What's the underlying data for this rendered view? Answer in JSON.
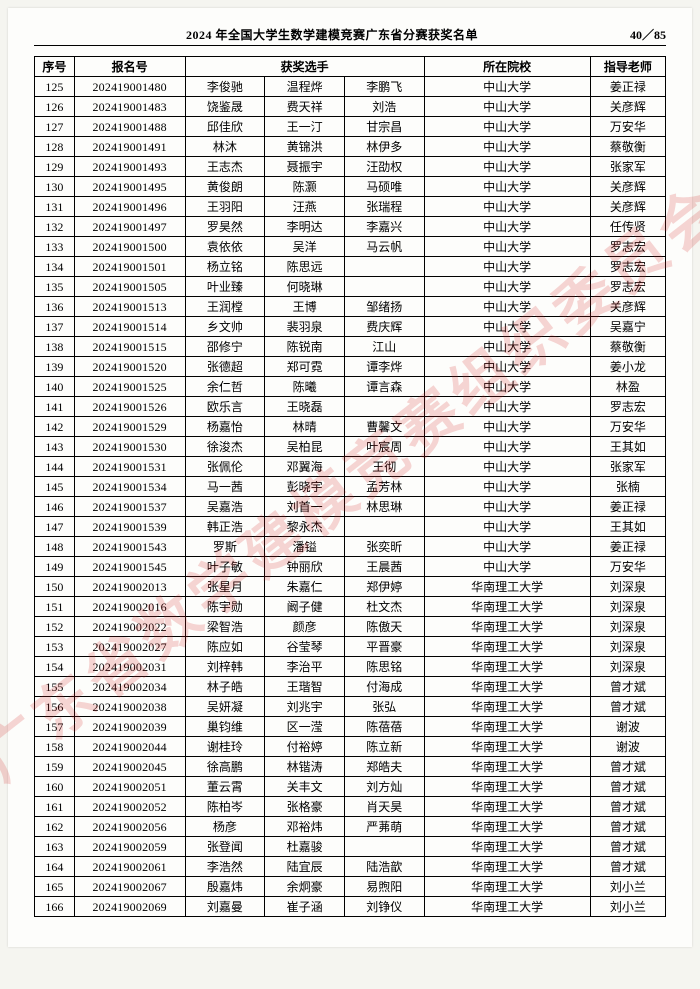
{
  "header": {
    "title": "2024 年全国大学生数学建模竞赛广东省分赛获奖名单",
    "page_label": "40／85"
  },
  "watermark": "广东省数学建模竞赛组织委员会",
  "columns": {
    "idx": "序号",
    "reg": "报名号",
    "members": "获奖选手",
    "school": "所在院校",
    "teacher": "指导老师"
  },
  "rows": [
    {
      "idx": "125",
      "reg": "202419001480",
      "m": [
        "李俊驰",
        "温程烨",
        "李鹏飞"
      ],
      "school": "中山大学",
      "teacher": "姜正禄"
    },
    {
      "idx": "126",
      "reg": "202419001483",
      "m": [
        "饶鉴晟",
        "费天祥",
        "刘浩"
      ],
      "school": "中山大学",
      "teacher": "关彦辉"
    },
    {
      "idx": "127",
      "reg": "202419001488",
      "m": [
        "邱佳欣",
        "王一汀",
        "甘宗昌"
      ],
      "school": "中山大学",
      "teacher": "万安华"
    },
    {
      "idx": "128",
      "reg": "202419001491",
      "m": [
        "林沐",
        "黄锦洪",
        "林伊多"
      ],
      "school": "中山大学",
      "teacher": "蔡敬衡"
    },
    {
      "idx": "129",
      "reg": "202419001493",
      "m": [
        "王志杰",
        "聂振宇",
        "汪劭权"
      ],
      "school": "中山大学",
      "teacher": "张家军"
    },
    {
      "idx": "130",
      "reg": "202419001495",
      "m": [
        "黄俊朗",
        "陈灏",
        "马硕唯"
      ],
      "school": "中山大学",
      "teacher": "关彦辉"
    },
    {
      "idx": "131",
      "reg": "202419001496",
      "m": [
        "王羽阳",
        "汪燕",
        "张瑞程"
      ],
      "school": "中山大学",
      "teacher": "关彦辉"
    },
    {
      "idx": "132",
      "reg": "202419001497",
      "m": [
        "罗昊然",
        "李明达",
        "李嘉兴"
      ],
      "school": "中山大学",
      "teacher": "任传贤"
    },
    {
      "idx": "133",
      "reg": "202419001500",
      "m": [
        "袁依依",
        "吴洋",
        "马云帆"
      ],
      "school": "中山大学",
      "teacher": "罗志宏"
    },
    {
      "idx": "134",
      "reg": "202419001501",
      "m": [
        "杨立铭",
        "陈思远",
        ""
      ],
      "school": "中山大学",
      "teacher": "罗志宏"
    },
    {
      "idx": "135",
      "reg": "202419001505",
      "m": [
        "叶业臻",
        "何晓琳",
        ""
      ],
      "school": "中山大学",
      "teacher": "罗志宏"
    },
    {
      "idx": "136",
      "reg": "202419001513",
      "m": [
        "王润樘",
        "王博",
        "邹绪扬"
      ],
      "school": "中山大学",
      "teacher": "关彦辉"
    },
    {
      "idx": "137",
      "reg": "202419001514",
      "m": [
        "乡文帅",
        "裴羽泉",
        "费庆辉"
      ],
      "school": "中山大学",
      "teacher": "吴嘉宁"
    },
    {
      "idx": "138",
      "reg": "202419001515",
      "m": [
        "邵修宁",
        "陈锐南",
        "江山"
      ],
      "school": "中山大学",
      "teacher": "蔡敬衡"
    },
    {
      "idx": "139",
      "reg": "202419001520",
      "m": [
        "张德超",
        "郑可霓",
        "谭李烨"
      ],
      "school": "中山大学",
      "teacher": "姜小龙"
    },
    {
      "idx": "140",
      "reg": "202419001525",
      "m": [
        "余仁哲",
        "陈曦",
        "谭言森"
      ],
      "school": "中山大学",
      "teacher": "林盈"
    },
    {
      "idx": "141",
      "reg": "202419001526",
      "m": [
        "欧乐言",
        "王晓磊",
        ""
      ],
      "school": "中山大学",
      "teacher": "罗志宏"
    },
    {
      "idx": "142",
      "reg": "202419001529",
      "m": [
        "杨嘉怡",
        "林晴",
        "曹馨文"
      ],
      "school": "中山大学",
      "teacher": "万安华"
    },
    {
      "idx": "143",
      "reg": "202419001530",
      "m": [
        "徐浚杰",
        "吴柏昆",
        "叶宸周"
      ],
      "school": "中山大学",
      "teacher": "王其如"
    },
    {
      "idx": "144",
      "reg": "202419001531",
      "m": [
        "张佩伦",
        "邓翼海",
        "王彻"
      ],
      "school": "中山大学",
      "teacher": "张家军"
    },
    {
      "idx": "145",
      "reg": "202419001534",
      "m": [
        "马一茜",
        "彭晓宇",
        "孟芳林"
      ],
      "school": "中山大学",
      "teacher": "张楠"
    },
    {
      "idx": "146",
      "reg": "202419001537",
      "m": [
        "吴嘉浩",
        "刘首一",
        "林思琳"
      ],
      "school": "中山大学",
      "teacher": "姜正禄"
    },
    {
      "idx": "147",
      "reg": "202419001539",
      "m": [
        "韩正浩",
        "黎永杰",
        ""
      ],
      "school": "中山大学",
      "teacher": "王其如"
    },
    {
      "idx": "148",
      "reg": "202419001543",
      "m": [
        "罗斯",
        "潘镒",
        "张奕昕"
      ],
      "school": "中山大学",
      "teacher": "姜正禄"
    },
    {
      "idx": "149",
      "reg": "202419001545",
      "m": [
        "叶子敏",
        "钟丽欣",
        "王晨茜"
      ],
      "school": "中山大学",
      "teacher": "万安华"
    },
    {
      "idx": "150",
      "reg": "202419002013",
      "m": [
        "张星月",
        "朱嘉仁",
        "郑伊婷"
      ],
      "school": "华南理工大学",
      "teacher": "刘深泉"
    },
    {
      "idx": "151",
      "reg": "202419002016",
      "m": [
        "陈宇勋",
        "阚子健",
        "杜文杰"
      ],
      "school": "华南理工大学",
      "teacher": "刘深泉"
    },
    {
      "idx": "152",
      "reg": "202419002022",
      "m": [
        "梁智浩",
        "颜彦",
        "陈傲天"
      ],
      "school": "华南理工大学",
      "teacher": "刘深泉"
    },
    {
      "idx": "153",
      "reg": "202419002027",
      "m": [
        "陈应如",
        "谷莹琴",
        "平晋豪"
      ],
      "school": "华南理工大学",
      "teacher": "刘深泉"
    },
    {
      "idx": "154",
      "reg": "202419002031",
      "m": [
        "刘梓韩",
        "李治平",
        "陈思铭"
      ],
      "school": "华南理工大学",
      "teacher": "刘深泉"
    },
    {
      "idx": "155",
      "reg": "202419002034",
      "m": [
        "林子皓",
        "王瑎智",
        "付海成"
      ],
      "school": "华南理工大学",
      "teacher": "曾才斌"
    },
    {
      "idx": "156",
      "reg": "202419002038",
      "m": [
        "吴妍凝",
        "刘兆宇",
        "张弘"
      ],
      "school": "华南理工大学",
      "teacher": "曾才斌"
    },
    {
      "idx": "157",
      "reg": "202419002039",
      "m": [
        "巢钧维",
        "区一滢",
        "陈蓓蓓"
      ],
      "school": "华南理工大学",
      "teacher": "谢波"
    },
    {
      "idx": "158",
      "reg": "202419002044",
      "m": [
        "谢桂玲",
        "付裕婷",
        "陈立新"
      ],
      "school": "华南理工大学",
      "teacher": "谢波"
    },
    {
      "idx": "159",
      "reg": "202419002045",
      "m": [
        "徐高鹏",
        "林锴涛",
        "郑皓夫"
      ],
      "school": "华南理工大学",
      "teacher": "曾才斌"
    },
    {
      "idx": "160",
      "reg": "202419002051",
      "m": [
        "董云霄",
        "关丰文",
        "刘方灿"
      ],
      "school": "华南理工大学",
      "teacher": "曾才斌"
    },
    {
      "idx": "161",
      "reg": "202419002052",
      "m": [
        "陈柏岑",
        "张格豪",
        "肖天昊"
      ],
      "school": "华南理工大学",
      "teacher": "曾才斌"
    },
    {
      "idx": "162",
      "reg": "202419002056",
      "m": [
        "杨彦",
        "邓裕炜",
        "严茀萌"
      ],
      "school": "华南理工大学",
      "teacher": "曾才斌"
    },
    {
      "idx": "163",
      "reg": "202419002059",
      "m": [
        "张登闻",
        "杜嘉骏",
        ""
      ],
      "school": "华南理工大学",
      "teacher": "曾才斌"
    },
    {
      "idx": "164",
      "reg": "202419002061",
      "m": [
        "李浩然",
        "陆宜辰",
        "陆浩歆"
      ],
      "school": "华南理工大学",
      "teacher": "曾才斌"
    },
    {
      "idx": "165",
      "reg": "202419002067",
      "m": [
        "殷嘉炜",
        "余炯豪",
        "易煦阳"
      ],
      "school": "华南理工大学",
      "teacher": "刘小兰"
    },
    {
      "idx": "166",
      "reg": "202419002069",
      "m": [
        "刘嘉曼",
        "崔子涵",
        "刘铮仪"
      ],
      "school": "华南理工大学",
      "teacher": "刘小兰"
    }
  ]
}
